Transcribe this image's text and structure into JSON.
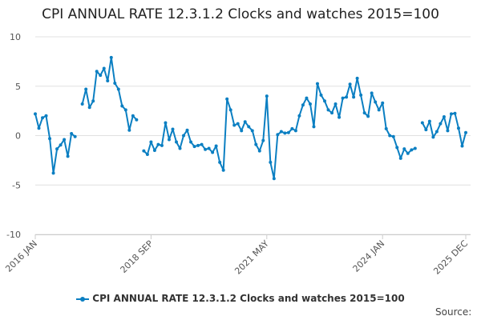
{
  "title": "CPI ANNUAL RATE 12.3.1.2 Clocks and watches 2015=100",
  "source_label": "Source:",
  "colors": {
    "series": "#0b7fc2",
    "grid": "#e0e0e0"
  },
  "chart_data": {
    "type": "line",
    "title": "CPI ANNUAL RATE 12.3.1.2 Clocks and watches 2015=100",
    "x_start": "2016 JAN",
    "x_end": "2025 DEC",
    "x_frequency": "monthly",
    "x_tick_labels": [
      {
        "label": "2016 JAN",
        "index": 0
      },
      {
        "label": "2018 SEP",
        "index": 32
      },
      {
        "label": "2021 MAY",
        "index": 64
      },
      {
        "label": "2024 JAN",
        "index": 96
      },
      {
        "label": "2025 DEC",
        "index": 119
      }
    ],
    "ylim": [
      -10,
      10
    ],
    "y_ticks": [
      -10,
      -5,
      0,
      5,
      10
    ],
    "grid": "horizontal",
    "legend_position": "bottom",
    "series": [
      {
        "name": "CPI ANNUAL RATE 12.3.1.2 Clocks and watches 2015=100",
        "values": [
          2.2,
          0.75,
          1.8,
          2.0,
          -0.3,
          -3.8,
          -1.35,
          -0.95,
          -0.4,
          -2.1,
          0.2,
          -0.1,
          null,
          3.2,
          4.7,
          2.85,
          3.5,
          6.5,
          6.1,
          6.8,
          5.55,
          7.9,
          5.3,
          4.7,
          3.0,
          2.6,
          0.55,
          2.0,
          1.6,
          null,
          -1.55,
          -1.9,
          -0.65,
          -1.5,
          -0.9,
          -1.0,
          1.3,
          -0.4,
          0.65,
          -0.65,
          -1.3,
          0.0,
          0.55,
          -0.65,
          -1.1,
          -1.0,
          -0.9,
          -1.4,
          -1.3,
          -1.7,
          -1.05,
          -2.7,
          -3.5,
          3.7,
          2.6,
          1.05,
          1.2,
          0.5,
          1.4,
          0.9,
          0.5,
          -0.9,
          -1.55,
          -0.5,
          4.0,
          -2.7,
          -4.35,
          0.1,
          0.4,
          0.25,
          0.3,
          0.7,
          0.5,
          2.0,
          3.1,
          3.8,
          3.2,
          0.9,
          5.25,
          4.1,
          3.5,
          2.6,
          2.3,
          3.2,
          1.85,
          3.8,
          3.9,
          5.2,
          3.9,
          5.8,
          4.1,
          2.3,
          1.95,
          4.3,
          3.4,
          2.6,
          3.3,
          0.7,
          0.0,
          -0.1,
          -1.2,
          -2.3,
          -1.35,
          -1.8,
          -1.45,
          -1.3,
          null,
          1.3,
          0.6,
          1.45,
          -0.15,
          0.4,
          1.2,
          1.9,
          0.5,
          2.2,
          2.25,
          0.75,
          -1.05,
          0.3
        ]
      }
    ]
  }
}
